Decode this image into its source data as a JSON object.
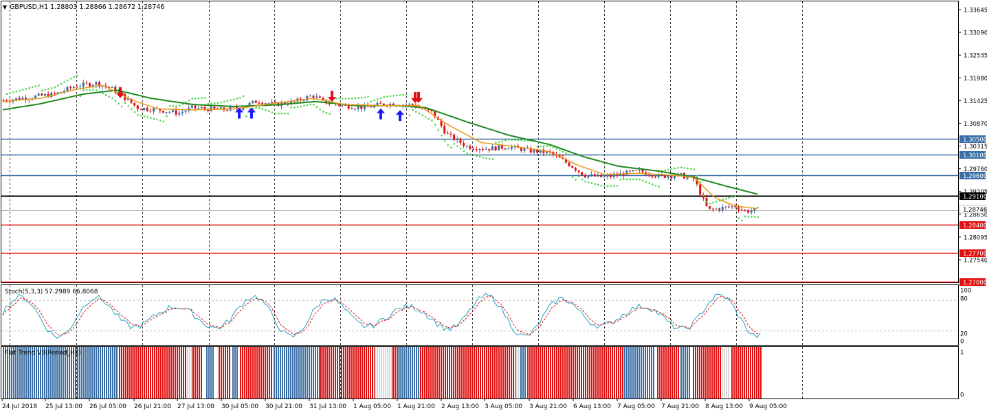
{
  "symbol": {
    "dropdown_glyph": "▼",
    "header_text": "GBPUSD,H1  1.28803 1.28866 1.28672 1.28746"
  },
  "main_chart": {
    "price_ticks": [
      "1.33645",
      "1.33090",
      "1.32535",
      "1.31980",
      "1.31425",
      "1.30870",
      "1.30315",
      "1.29760",
      "1.29205",
      "1.28650",
      "1.28095",
      "1.27540"
    ],
    "current_price": "1.28746",
    "levels": [
      {
        "label": "1.30500",
        "price": 1.305,
        "color": "#3a6ea5"
      },
      {
        "label": "1.30100",
        "price": 1.301,
        "color": "#3a6ea5"
      },
      {
        "label": "1.29600",
        "price": 1.296,
        "color": "#3a6ea5"
      },
      {
        "label": "1.29100",
        "price": 1.291,
        "color": "#000000"
      },
      {
        "label": "1.28400",
        "price": 1.284,
        "color": "#e01010"
      },
      {
        "label": "1.27700",
        "price": 1.277,
        "color": "#e01010"
      },
      {
        "label": "1.27000",
        "price": 1.27,
        "color": "#e01010"
      }
    ],
    "colors": {
      "bull": "#3a6ea5",
      "bear": "#e01010",
      "ma_fast": "#e89a1a",
      "ma_slow": "#1e8a1e",
      "sar": "#4bd44b",
      "arrow_up": "#1a1aff",
      "arrow_down": "#e01010"
    }
  },
  "stoch_panel": {
    "label": "Stoch(5,3,3) 57.2989 66.8068",
    "ticks": [
      "100",
      "80",
      "20",
      "0"
    ]
  },
  "trend_panel": {
    "label": "Flat Trend V3(Period_H1)",
    "ticks": [
      "1",
      "0"
    ]
  },
  "time_axis": [
    "24 Jul 2018",
    "25 Jul 13:00",
    "26 Jul 05:00",
    "26 Jul 21:00",
    "27 Jul 13:00",
    "30 Jul 05:00",
    "30 Jul 21:00",
    "31 Jul 13:00",
    "1 Aug 05:00",
    "1 Aug 21:00",
    "2 Aug 13:00",
    "3 Aug 05:00",
    "3 Aug 21:00",
    "6 Aug 13:00",
    "7 Aug 05:00",
    "7 Aug 21:00",
    "8 Aug 13:00",
    "9 Aug 05:00"
  ]
}
